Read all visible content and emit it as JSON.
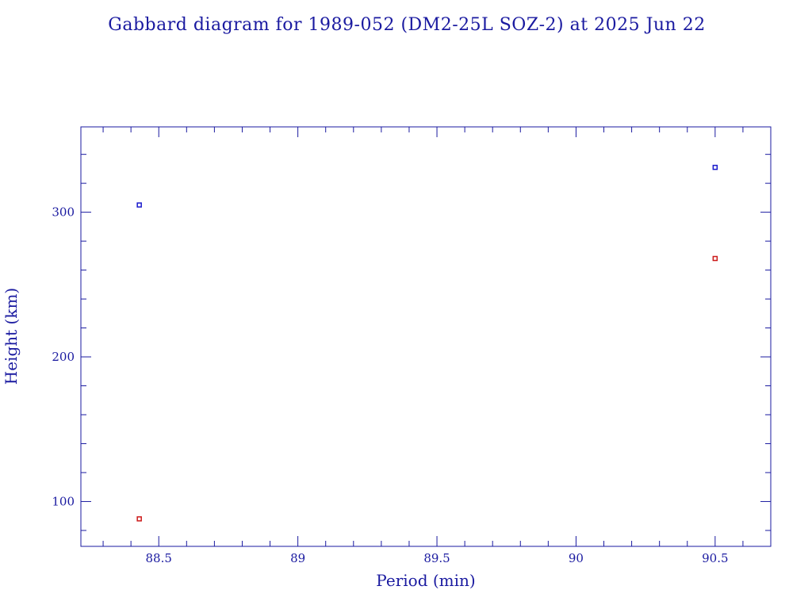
{
  "chart_data": {
    "type": "scatter",
    "title": "Gabbard diagram for 1989-052 (DM2-25L SOZ-2) at 2025 Jun 22",
    "xlabel": "Period (min)",
    "ylabel": "Height (km)",
    "xlim": [
      88.22,
      90.7
    ],
    "ylim": [
      69,
      359
    ],
    "x_ticks_major": [
      88.5,
      89,
      89.5,
      90,
      90.5
    ],
    "x_tick_labels": [
      "88.5",
      "89",
      "89.5",
      "90",
      "90.5"
    ],
    "x_ticks_minor_step": 0.1,
    "y_ticks_major": [
      100,
      200,
      300
    ],
    "y_tick_labels": [
      "100",
      "200",
      "300"
    ],
    "y_ticks_minor_step": 20,
    "grid": false,
    "legend": "none",
    "series": [
      {
        "color": "#1a1acc",
        "points": [
          {
            "x": 88.43,
            "y": 305
          },
          {
            "x": 90.5,
            "y": 331
          }
        ]
      },
      {
        "color": "#cc1a1a",
        "points": [
          {
            "x": 88.43,
            "y": 88
          },
          {
            "x": 90.5,
            "y": 268
          }
        ]
      }
    ],
    "colors": {
      "axes": "#1a1aa0"
    }
  }
}
